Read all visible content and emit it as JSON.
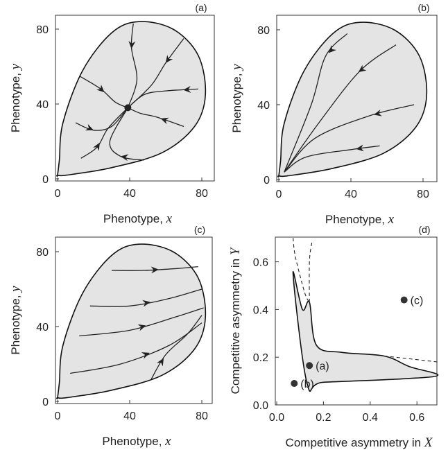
{
  "chart_data": [
    {
      "panel": "(a)",
      "type": "line",
      "xlabel": "Phenotype, ",
      "xvar": "x",
      "ylabel": "Phenotype, ",
      "yvar": "y",
      "xticks": [
        "0",
        "40",
        "80"
      ],
      "yticks": [
        "0",
        "40",
        "80"
      ],
      "xlim": [
        0,
        88
      ],
      "ylim": [
        0,
        88
      ],
      "equilibrium": [
        [
          39,
          38
        ]
      ],
      "series": [
        {
          "points": [
            [
              42,
              83
            ],
            [
              41,
              70
            ],
            [
              44,
              53
            ],
            [
              39,
              38
            ]
          ],
          "arrow": 0.25
        },
        {
          "points": [
            [
              70,
              75
            ],
            [
              60,
              62
            ],
            [
              52,
              50
            ],
            [
              39,
              38
            ]
          ],
          "arrow": 0.3
        },
        {
          "points": [
            [
              78,
              48
            ],
            [
              60,
              47
            ],
            [
              48,
              45
            ],
            [
              39,
              38
            ]
          ],
          "arrow": 0.15
        },
        {
          "points": [
            [
              12,
              55
            ],
            [
              24,
              48
            ],
            [
              32,
              41
            ],
            [
              39,
              38
            ]
          ],
          "arrow": 0.45
        },
        {
          "points": [
            [
              70,
              28
            ],
            [
              55,
              33
            ],
            [
              46,
              35
            ],
            [
              39,
              38
            ]
          ],
          "arrow": 0.35
        },
        {
          "points": [
            [
              10,
              30
            ],
            [
              20,
              26
            ],
            [
              30,
              28
            ],
            [
              39,
              38
            ]
          ],
          "arrow": 0.25
        },
        {
          "points": [
            [
              13,
              11
            ],
            [
              22,
              17
            ],
            [
              28,
              27
            ],
            [
              39,
              38
            ]
          ],
          "arrow": 0.3
        },
        {
          "points": [
            [
              48,
              10
            ],
            [
              35,
              12
            ],
            [
              29,
              20
            ],
            [
              39,
              38
            ]
          ],
          "arrow": 0.25
        }
      ]
    },
    {
      "panel": "(b)",
      "type": "line",
      "xlabel": "Phenotype, ",
      "xvar": "x",
      "ylabel": "Phenotype, ",
      "yvar": "y",
      "xticks": [
        "0",
        "40",
        "80"
      ],
      "yticks": [
        "0",
        "40",
        "80"
      ],
      "xlim": [
        0,
        88
      ],
      "ylim": [
        0,
        88
      ],
      "series": [
        {
          "points": [
            [
              38,
              78
            ],
            [
              26,
              66
            ],
            [
              18,
              40
            ],
            [
              3,
              4
            ]
          ],
          "arrow": 0.15
        },
        {
          "points": [
            [
              65,
              72
            ],
            [
              45,
              58
            ],
            [
              22,
              30
            ],
            [
              3,
              4
            ]
          ],
          "arrow": 0.25
        },
        {
          "points": [
            [
              75,
              40
            ],
            [
              50,
              34
            ],
            [
              20,
              22
            ],
            [
              3,
              4
            ]
          ],
          "arrow": 0.25
        },
        {
          "points": [
            [
              56,
              18
            ],
            [
              40,
              16
            ],
            [
              15,
              12
            ],
            [
              3,
              4
            ]
          ],
          "arrow": 0.2
        }
      ]
    },
    {
      "panel": "(c)",
      "type": "line",
      "xlabel": "Phenotype, ",
      "xvar": "x",
      "ylabel": "Phenotype, ",
      "yvar": "y",
      "xticks": [
        "0",
        "40",
        "80"
      ],
      "yticks": [
        "0",
        "40",
        "80"
      ],
      "xlim": [
        0,
        88
      ],
      "ylim": [
        0,
        88
      ],
      "series": [
        {
          "points": [
            [
              30,
              70
            ],
            [
              48,
              70
            ],
            [
              66,
              71
            ],
            [
              78,
              72
            ]
          ],
          "arrow": 0.5
        },
        {
          "points": [
            [
              18,
              51
            ],
            [
              40,
              51
            ],
            [
              62,
              55
            ],
            [
              80,
              60
            ]
          ],
          "arrow": 0.5
        },
        {
          "points": [
            [
              12,
              35
            ],
            [
              40,
              38
            ],
            [
              65,
              45
            ],
            [
              81,
              50
            ]
          ],
          "arrow": 0.5
        },
        {
          "points": [
            [
              7,
              15
            ],
            [
              35,
              20
            ],
            [
              62,
              30
            ],
            [
              80,
              42
            ]
          ],
          "arrow": 0.55
        },
        {
          "points": [
            [
              52,
              12
            ],
            [
              60,
              25
            ],
            [
              72,
              36
            ],
            [
              80,
              46
            ]
          ],
          "arrow": 0.25
        }
      ]
    },
    {
      "panel": "(d)",
      "type": "scatter",
      "xlabel": "Competitive asymmetry in ",
      "xvar": "X",
      "ylabel": "Competitive asymmetry in ",
      "yvar": "Y",
      "xticks": [
        "0.0",
        "0.2",
        "0.4",
        "0.6"
      ],
      "yticks": [
        "0.0",
        "0.2",
        "0.4",
        "0.6"
      ],
      "xlim": [
        0,
        0.69
      ],
      "ylim": [
        0,
        0.7
      ],
      "region_boundary": [
        [
          0.07,
          0.55
        ],
        [
          0.11,
          0.4
        ],
        [
          0.14,
          0.43
        ],
        [
          0.17,
          0.25
        ],
        [
          0.28,
          0.22
        ],
        [
          0.46,
          0.205
        ],
        [
          0.57,
          0.16
        ],
        [
          0.69,
          0.125
        ],
        [
          0.55,
          0.11
        ],
        [
          0.2,
          0.095
        ],
        [
          0.13,
          0.09
        ]
      ],
      "dashed_lines": [
        [
          [
            0.07,
            0.7
          ],
          [
            0.08,
            0.62
          ],
          [
            0.12,
            0.47
          ],
          [
            0.14,
            0.43
          ]
        ],
        [
          [
            0.15,
            0.68
          ],
          [
            0.14,
            0.6
          ],
          [
            0.14,
            0.43
          ]
        ],
        [
          [
            0.46,
            0.205
          ],
          [
            0.69,
            0.18
          ]
        ]
      ],
      "points": [
        {
          "label": "(a)",
          "x": 0.14,
          "y": 0.165
        },
        {
          "label": "(b)",
          "x": 0.075,
          "y": 0.09
        },
        {
          "label": "(c)",
          "x": 0.545,
          "y": 0.44
        }
      ]
    }
  ]
}
